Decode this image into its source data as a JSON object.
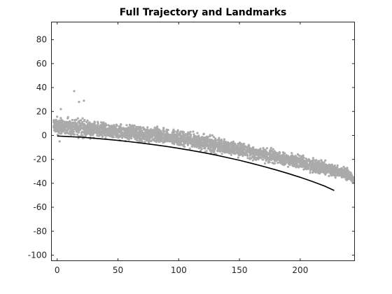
{
  "chart_data": {
    "type": "scatter",
    "title": "Full Trajectory and Landmarks",
    "xlabel": "",
    "ylabel": "",
    "xlim": [
      -5,
      245
    ],
    "ylim": [
      -105,
      95
    ],
    "xticks": [
      0,
      50,
      100,
      150,
      200
    ],
    "yticks": [
      -100,
      -80,
      -60,
      -40,
      -20,
      0,
      20,
      40,
      60,
      80
    ],
    "grid": false,
    "legend": "none",
    "colors": {
      "landmarks": "#aaaaaa",
      "trajectory": "#000000",
      "axes": "#262626"
    },
    "series": [
      {
        "kind": "landmarks",
        "x": [
          -3,
          0,
          5,
          10,
          15,
          20,
          30,
          40,
          50,
          60,
          70,
          80,
          90,
          100,
          110,
          120,
          130,
          140,
          150,
          160,
          170,
          180,
          190,
          200,
          210,
          220,
          230,
          240,
          245
        ],
        "y": [
          9,
          8,
          7,
          6,
          6,
          6,
          5,
          4,
          3,
          2,
          1,
          0,
          -1,
          -2,
          -4,
          -6,
          -8,
          -10,
          -12,
          -14,
          -16,
          -18,
          -20,
          -22,
          -25,
          -27,
          -30,
          -33,
          -38
        ],
        "spread": [
          7,
          8,
          8,
          10,
          10,
          10,
          9,
          8,
          8,
          8,
          8,
          8,
          8,
          8,
          8,
          8,
          8,
          7,
          7,
          7,
          7,
          7,
          7,
          7,
          7,
          7,
          7,
          6,
          3
        ],
        "outliers": [
          [
            14,
            37
          ],
          [
            22,
            29
          ],
          [
            18,
            28
          ],
          [
            3,
            22
          ],
          [
            2,
            -5
          ]
        ]
      },
      {
        "kind": "trajectory",
        "x": [
          0,
          10,
          20,
          30,
          40,
          50,
          60,
          70,
          80,
          90,
          100,
          110,
          120,
          130,
          140,
          150,
          160,
          170,
          180,
          190,
          200,
          210,
          220,
          228
        ],
        "y": [
          -0.5,
          -1,
          -1.5,
          -2.3,
          -3.2,
          -4.2,
          -5.3,
          -6.5,
          -7.8,
          -9.2,
          -10.8,
          -12.5,
          -14.3,
          -16.3,
          -18.5,
          -20.8,
          -23.3,
          -26,
          -28.8,
          -31.8,
          -35,
          -38.5,
          -42.3,
          -46
        ]
      }
    ]
  }
}
